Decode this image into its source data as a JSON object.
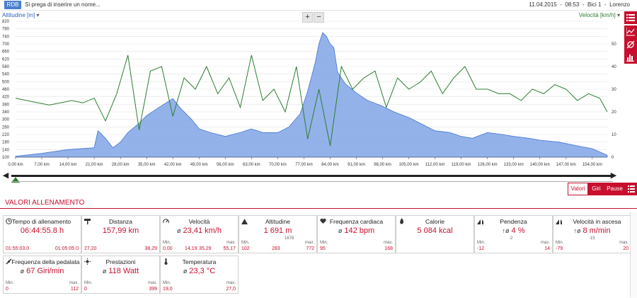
{
  "topbar": {
    "badge": "RDB",
    "title": "Si prega di inserire un nome...",
    "date": "11.04.2015",
    "time": "08:53",
    "bike": "Bici 1",
    "user": "Lorenzo",
    "separator": "-"
  },
  "chart": {
    "left_axis_label": "Altitudine [m]",
    "right_axis_label": "Velocità [km/h]",
    "left_dropdown": "▾",
    "right_dropdown": "▾",
    "zoom_in": "+",
    "zoom_out": "−",
    "colors": {
      "altitude_fill": "#8eaee8",
      "altitude_line": "#3b6fd6",
      "speed_line": "#2e7d32",
      "accent": "#c8102e"
    }
  },
  "chart_data": {
    "type": "area",
    "xlabel": "",
    "x_ticks": [
      "0,00 km",
      "7,00 km",
      "14,00 km",
      "21,00 km",
      "28,00 km",
      "35,00 km",
      "42,00 km",
      "49,00 km",
      "56,00 km",
      "63,00 km",
      "70,00 km",
      "77,00 km",
      "84,00 km",
      "91,00 km",
      "98,00 km",
      "105,00 km",
      "112,00 km",
      "119,00 km",
      "126,00 km",
      "133,00 km",
      "140,00 km",
      "147,00 km",
      "154,00 km"
    ],
    "y_left_ticks": [
      "820",
      "780",
      "740",
      "700",
      "660",
      "620",
      "580",
      "540",
      "500",
      "460",
      "420",
      "380",
      "340",
      "300",
      "260",
      "220",
      "180",
      "140",
      "100"
    ],
    "y_right_ticks": [
      "50",
      "40",
      "30",
      "20",
      "10",
      "0"
    ],
    "ylim_left": [
      100,
      820
    ],
    "ylim_right": [
      0,
      60
    ],
    "series": [
      {
        "name": "Altitudine [m]",
        "axis": "left",
        "x": [
          0,
          7,
          14,
          21,
          22,
          24,
          26,
          28,
          30,
          33,
          35,
          38,
          42,
          44,
          47,
          49,
          52,
          56,
          60,
          63,
          66,
          70,
          73,
          76,
          78,
          80,
          81,
          82,
          83,
          84,
          85,
          86,
          88,
          91,
          94,
          98,
          101,
          105,
          108,
          112,
          116,
          119,
          122,
          126,
          130,
          133,
          137,
          140,
          145,
          150,
          154,
          158
        ],
        "values": [
          105,
          120,
          140,
          150,
          240,
          200,
          150,
          180,
          230,
          280,
          320,
          360,
          410,
          360,
          300,
          250,
          230,
          210,
          230,
          250,
          230,
          230,
          260,
          330,
          450,
          600,
          700,
          760,
          740,
          700,
          680,
          550,
          490,
          440,
          400,
          370,
          340,
          310,
          280,
          240,
          230,
          210,
          200,
          230,
          220,
          210,
          200,
          190,
          180,
          160,
          145,
          110
        ]
      },
      {
        "name": "Velocità [km/h]",
        "axis": "right",
        "x": [
          0,
          3,
          6,
          9,
          12,
          15,
          18,
          21,
          24,
          27,
          30,
          33,
          36,
          39,
          42,
          45,
          48,
          51,
          54,
          57,
          60,
          63,
          66,
          69,
          72,
          75,
          78,
          81,
          84,
          87,
          90,
          93,
          96,
          99,
          102,
          105,
          108,
          111,
          114,
          117,
          120,
          123,
          126,
          129,
          132,
          135,
          138,
          141,
          144,
          147,
          150,
          153,
          156,
          158
        ],
        "values": [
          26,
          25,
          24,
          23,
          24,
          25,
          24,
          26,
          16,
          28,
          45,
          12,
          38,
          40,
          18,
          35,
          30,
          40,
          28,
          35,
          22,
          45,
          25,
          30,
          20,
          40,
          8,
          30,
          5,
          40,
          30,
          35,
          38,
          22,
          35,
          30,
          33,
          38,
          28,
          35,
          40,
          30,
          30,
          28,
          28,
          25,
          30,
          28,
          32,
          30,
          25,
          28,
          26,
          20
        ]
      }
    ]
  },
  "tabs": {
    "values": "Valori",
    "laps": "Giri",
    "pauses": "Pause"
  },
  "section": {
    "title": "VALORI ALLENAMENTO"
  },
  "cards": [
    {
      "title": "Tempo di allenamento",
      "value": "06:44:55.8 h",
      "min_label": "",
      "min": "01:55:03.0",
      "max_label": "",
      "max": "01:05:05.0"
    },
    {
      "title": "Distanza",
      "value": "157,99 km",
      "min_label": "",
      "min": "27,20",
      "max_label": "",
      "max": "38,29"
    },
    {
      "title": "Velocità",
      "value": "23,41 km/h",
      "min_label": "Min.",
      "min": "0,00",
      "max_label": "max.",
      "max": "55,17",
      "mid1": "14,19",
      "mid2": "35,29"
    },
    {
      "title": "Altitudine",
      "value": "1 691 m",
      "sub": "1676",
      "min_label": "Min.",
      "min": "102",
      "max_label": "max.",
      "max": "772",
      "mid1": "283"
    },
    {
      "title": "Frequenza cardiaca",
      "value": "142 bpm",
      "min_label": "Min.",
      "min": "95",
      "max_label": "max.",
      "max": "168"
    },
    {
      "title": "Calorie",
      "value": "5 084 kcal",
      "min_label": "",
      "min": "",
      "max_label": "",
      "max": ""
    },
    {
      "title": "Pendenza",
      "value": "4 %",
      "sub": "-2",
      "min_label": "Min.",
      "min": "-12",
      "max_label": "max.",
      "max": "14"
    },
    {
      "title": "Velocità in ascesa",
      "value": "8 m/min",
      "sub": "-15",
      "min_label": "Min.",
      "min": "-79",
      "max_label": "max.",
      "max": "20"
    },
    {
      "title": "Frequenza della pedalata",
      "value": "67 Giri/min",
      "min_label": "Min.",
      "min": "0",
      "max_label": "max.",
      "max": "112"
    },
    {
      "title": "Prestazioni",
      "value": "118 Watt",
      "min_label": "Min.",
      "min": "0",
      "max_label": "max.",
      "max": "399"
    },
    {
      "title": "Temperatura",
      "value": "23,3 °C",
      "min_label": "Min.",
      "min": "19,0",
      "max_label": "max.",
      "max": "27,0"
    }
  ]
}
